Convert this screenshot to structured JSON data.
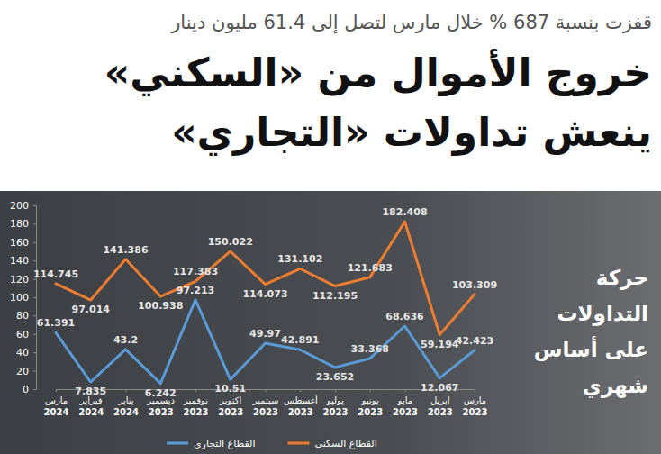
{
  "chart_data": {
    "type": "line",
    "subtitle": "قفزت بنسبة 687 % خلال مارس لتصل إلى 61.4 مليون دينار",
    "title": "خروج الأموال من «السكني»\nينعش تداولات «التجاري»",
    "annotation": "حركة\nالتداولات\nعلى أساس\nشهري",
    "categories": [
      "مارس 2024",
      "فبراير 2024",
      "يناير 2024",
      "ديسمبر 2023",
      "نوفمبر 2023",
      "اكتوبر 2023",
      "سبتمبر 2023",
      "أغسطس 2023",
      "يوليو 2023",
      "يونيو 2023",
      "مايو 2023",
      "ابريل 2023",
      "مارس 2023"
    ],
    "series": [
      {
        "name": "القطاع التجاري",
        "color": "#5b9bd5",
        "values": [
          61.391,
          7.835,
          43.2,
          6.242,
          97.213,
          10.51,
          49.97,
          42.891,
          23.652,
          33.368,
          68.636,
          12.067,
          42.423
        ]
      },
      {
        "name": "القطاع السكني",
        "color": "#ed7d31",
        "values": [
          114.745,
          97.014,
          141.386,
          100.938,
          117.383,
          150.022,
          114.073,
          131.102,
          112.195,
          121.683,
          182.408,
          59.194,
          103.309
        ]
      }
    ],
    "ylim": [
      0,
      200
    ],
    "yticks": [
      0,
      20,
      40,
      60,
      80,
      100,
      120,
      140,
      160,
      180,
      200
    ],
    "grid": false,
    "data_labels": true,
    "legend": "bottom"
  }
}
